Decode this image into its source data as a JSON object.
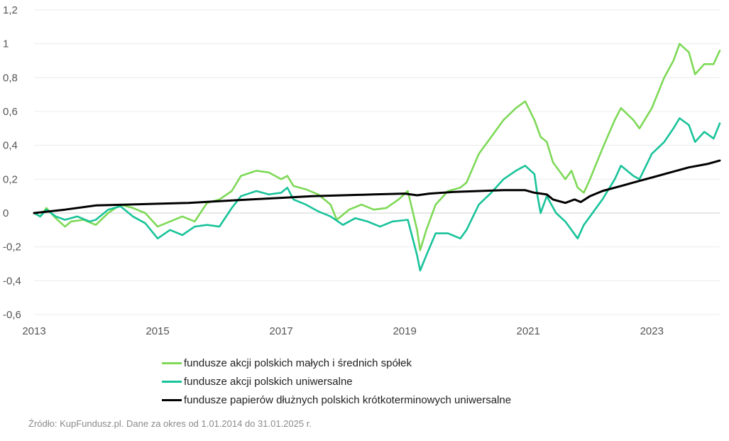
{
  "chart_data": {
    "type": "line",
    "title": "",
    "xlabel": "",
    "ylabel": "",
    "xlim": [
      2013,
      2024.1
    ],
    "ylim": [
      -0.6,
      1.2
    ],
    "x_ticks": [
      2013,
      2015,
      2017,
      2019,
      2021,
      2023
    ],
    "x_tick_labels": [
      "2013",
      "2015",
      "2017",
      "2019",
      "2021",
      "2023"
    ],
    "y_ticks": [
      1.2,
      1,
      0.8,
      0.6,
      0.4,
      0.2,
      0,
      -0.2,
      -0.4,
      -0.6
    ],
    "y_tick_labels": [
      "1,2",
      "1",
      "0,8",
      "0,6",
      "0,4",
      "0,2",
      "0",
      "-0,2",
      "-0,4",
      "-0,6"
    ],
    "grid": true,
    "legend_position": "bottom",
    "series": [
      {
        "name": "fundusze akcji polskich małych i średnich spółek",
        "color": "#7ed957",
        "points": [
          [
            2013,
            0
          ],
          [
            2013.1,
            -0.02
          ],
          [
            2013.2,
            0.03
          ],
          [
            2013.35,
            -0.03
          ],
          [
            2013.5,
            -0.08
          ],
          [
            2013.6,
            -0.05
          ],
          [
            2013.8,
            -0.04
          ],
          [
            2014.0,
            -0.07
          ],
          [
            2014.2,
            0.0
          ],
          [
            2014.4,
            0.05
          ],
          [
            2014.6,
            0.03
          ],
          [
            2014.8,
            0.0
          ],
          [
            2015.0,
            -0.08
          ],
          [
            2015.2,
            -0.05
          ],
          [
            2015.4,
            -0.02
          ],
          [
            2015.6,
            -0.05
          ],
          [
            2015.8,
            0.06
          ],
          [
            2016.0,
            0.08
          ],
          [
            2016.2,
            0.13
          ],
          [
            2016.35,
            0.22
          ],
          [
            2016.6,
            0.25
          ],
          [
            2016.8,
            0.24
          ],
          [
            2017.0,
            0.2
          ],
          [
            2017.1,
            0.22
          ],
          [
            2017.2,
            0.16
          ],
          [
            2017.4,
            0.14
          ],
          [
            2017.6,
            0.11
          ],
          [
            2017.8,
            0.05
          ],
          [
            2017.9,
            -0.04
          ],
          [
            2018.1,
            0.02
          ],
          [
            2018.3,
            0.05
          ],
          [
            2018.5,
            0.02
          ],
          [
            2018.7,
            0.03
          ],
          [
            2018.9,
            0.08
          ],
          [
            2019.05,
            0.13
          ],
          [
            2019.2,
            -0.1
          ],
          [
            2019.25,
            -0.22
          ],
          [
            2019.35,
            -0.1
          ],
          [
            2019.5,
            0.05
          ],
          [
            2019.7,
            0.13
          ],
          [
            2019.9,
            0.15
          ],
          [
            2020.0,
            0.18
          ],
          [
            2020.2,
            0.35
          ],
          [
            2020.4,
            0.45
          ],
          [
            2020.6,
            0.55
          ],
          [
            2020.8,
            0.62
          ],
          [
            2020.95,
            0.66
          ],
          [
            2021.1,
            0.55
          ],
          [
            2021.2,
            0.45
          ],
          [
            2021.3,
            0.42
          ],
          [
            2021.4,
            0.3
          ],
          [
            2021.5,
            0.25
          ],
          [
            2021.6,
            0.2
          ],
          [
            2021.7,
            0.25
          ],
          [
            2021.8,
            0.15
          ],
          [
            2021.9,
            0.12
          ],
          [
            2022.0,
            0.2
          ],
          [
            2022.2,
            0.38
          ],
          [
            2022.4,
            0.55
          ],
          [
            2022.5,
            0.62
          ],
          [
            2022.7,
            0.55
          ],
          [
            2022.8,
            0.5
          ],
          [
            2023.0,
            0.62
          ],
          [
            2023.2,
            0.8
          ],
          [
            2023.35,
            0.9
          ],
          [
            2023.45,
            1.0
          ],
          [
            2023.6,
            0.95
          ],
          [
            2023.7,
            0.82
          ],
          [
            2023.85,
            0.88
          ],
          [
            2024.0,
            0.88
          ],
          [
            2024.1,
            0.96
          ]
        ]
      },
      {
        "name": "fundusze akcji polskich uniwersalne",
        "color": "#19c39a",
        "points": [
          [
            2013,
            0
          ],
          [
            2013.1,
            -0.02
          ],
          [
            2013.2,
            0.02
          ],
          [
            2013.35,
            -0.02
          ],
          [
            2013.5,
            -0.04
          ],
          [
            2013.7,
            -0.02
          ],
          [
            2013.9,
            -0.05
          ],
          [
            2014.0,
            -0.04
          ],
          [
            2014.2,
            0.02
          ],
          [
            2014.4,
            0.04
          ],
          [
            2014.6,
            -0.02
          ],
          [
            2014.8,
            -0.06
          ],
          [
            2015.0,
            -0.15
          ],
          [
            2015.2,
            -0.1
          ],
          [
            2015.4,
            -0.13
          ],
          [
            2015.6,
            -0.08
          ],
          [
            2015.8,
            -0.07
          ],
          [
            2016.0,
            -0.08
          ],
          [
            2016.2,
            0.03
          ],
          [
            2016.35,
            0.1
          ],
          [
            2016.6,
            0.13
          ],
          [
            2016.8,
            0.11
          ],
          [
            2017.0,
            0.12
          ],
          [
            2017.1,
            0.15
          ],
          [
            2017.2,
            0.08
          ],
          [
            2017.4,
            0.05
          ],
          [
            2017.6,
            0.01
          ],
          [
            2017.8,
            -0.02
          ],
          [
            2018.0,
            -0.07
          ],
          [
            2018.2,
            -0.03
          ],
          [
            2018.4,
            -0.05
          ],
          [
            2018.6,
            -0.08
          ],
          [
            2018.8,
            -0.05
          ],
          [
            2019.05,
            -0.04
          ],
          [
            2019.2,
            -0.25
          ],
          [
            2019.25,
            -0.34
          ],
          [
            2019.35,
            -0.25
          ],
          [
            2019.5,
            -0.12
          ],
          [
            2019.7,
            -0.12
          ],
          [
            2019.9,
            -0.15
          ],
          [
            2020.0,
            -0.1
          ],
          [
            2020.2,
            0.05
          ],
          [
            2020.4,
            0.12
          ],
          [
            2020.6,
            0.2
          ],
          [
            2020.8,
            0.25
          ],
          [
            2020.95,
            0.28
          ],
          [
            2021.1,
            0.23
          ],
          [
            2021.15,
            0.1
          ],
          [
            2021.2,
            0.0
          ],
          [
            2021.3,
            0.1
          ],
          [
            2021.45,
            0.0
          ],
          [
            2021.6,
            -0.05
          ],
          [
            2021.7,
            -0.1
          ],
          [
            2021.8,
            -0.15
          ],
          [
            2021.9,
            -0.07
          ],
          [
            2022.0,
            -0.02
          ],
          [
            2022.2,
            0.08
          ],
          [
            2022.4,
            0.2
          ],
          [
            2022.5,
            0.28
          ],
          [
            2022.7,
            0.22
          ],
          [
            2022.8,
            0.2
          ],
          [
            2023.0,
            0.35
          ],
          [
            2023.2,
            0.42
          ],
          [
            2023.35,
            0.5
          ],
          [
            2023.45,
            0.56
          ],
          [
            2023.6,
            0.52
          ],
          [
            2023.7,
            0.42
          ],
          [
            2023.85,
            0.48
          ],
          [
            2024.0,
            0.44
          ],
          [
            2024.1,
            0.53
          ]
        ]
      },
      {
        "name": "fundusze papierów dłużnych polskich krótkoterminowych uniwersalne",
        "color": "#000000",
        "points": [
          [
            2013,
            0
          ],
          [
            2013.5,
            0.02
          ],
          [
            2014.0,
            0.045
          ],
          [
            2014.5,
            0.05
          ],
          [
            2015.0,
            0.055
          ],
          [
            2015.5,
            0.06
          ],
          [
            2016.0,
            0.07
          ],
          [
            2016.5,
            0.08
          ],
          [
            2017.0,
            0.09
          ],
          [
            2017.5,
            0.1
          ],
          [
            2018.0,
            0.105
          ],
          [
            2018.5,
            0.11
          ],
          [
            2019.0,
            0.115
          ],
          [
            2019.2,
            0.105
          ],
          [
            2019.4,
            0.115
          ],
          [
            2019.8,
            0.125
          ],
          [
            2020.2,
            0.13
          ],
          [
            2020.6,
            0.135
          ],
          [
            2020.95,
            0.135
          ],
          [
            2021.1,
            0.12
          ],
          [
            2021.3,
            0.11
          ],
          [
            2021.4,
            0.08
          ],
          [
            2021.5,
            0.07
          ],
          [
            2021.6,
            0.06
          ],
          [
            2021.75,
            0.08
          ],
          [
            2021.85,
            0.065
          ],
          [
            2022.0,
            0.1
          ],
          [
            2022.2,
            0.13
          ],
          [
            2022.5,
            0.16
          ],
          [
            2022.8,
            0.19
          ],
          [
            2023.0,
            0.21
          ],
          [
            2023.3,
            0.24
          ],
          [
            2023.6,
            0.27
          ],
          [
            2023.9,
            0.29
          ],
          [
            2024.1,
            0.31
          ]
        ]
      }
    ]
  },
  "source": "Źródło: KupFundusz.pl. Dane za okres od 1.01.2014 do 31.01.2025 r."
}
